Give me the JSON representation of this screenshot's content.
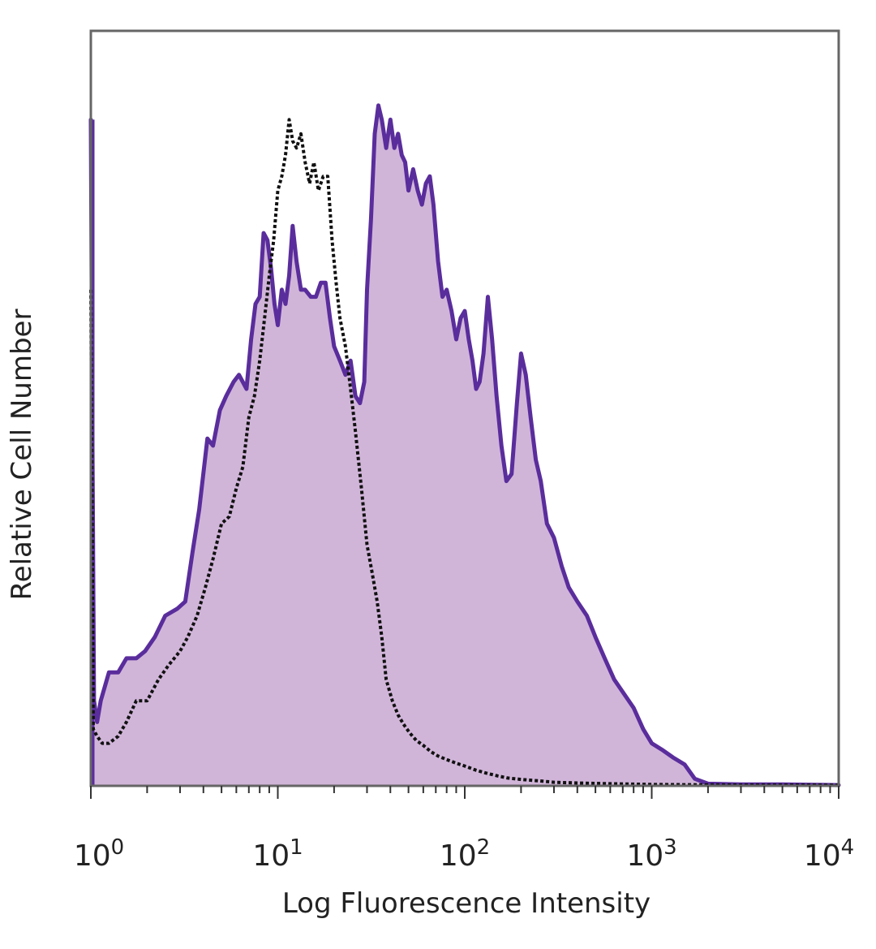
{
  "chart_data": {
    "type": "area",
    "xlabel": "Log Fluorescence Intensity",
    "ylabel": "Relative Cell Number",
    "x_scale": "log",
    "xlim": [
      1,
      10000
    ],
    "ylim": [
      0,
      1
    ],
    "grid": false,
    "legend": "none",
    "xticks": [
      {
        "value": 1,
        "base": "10",
        "exp": "0"
      },
      {
        "value": 10,
        "base": "10",
        "exp": "1"
      },
      {
        "value": 100,
        "base": "10",
        "exp": "2"
      },
      {
        "value": 1000,
        "base": "10",
        "exp": "3"
      },
      {
        "value": 10000,
        "base": "10",
        "exp": "4"
      }
    ],
    "series": [
      {
        "style": "filled-solid",
        "fill_color": "#d1b5d9",
        "line_color": "#5a2d9c",
        "points": [
          [
            1.0,
            0.94
          ],
          [
            1.02,
            0.48
          ],
          [
            1.04,
            0.12
          ],
          [
            1.08,
            0.09
          ],
          [
            1.13,
            0.12
          ],
          [
            1.25,
            0.16
          ],
          [
            1.4,
            0.16
          ],
          [
            1.55,
            0.18
          ],
          [
            1.75,
            0.18
          ],
          [
            1.95,
            0.19
          ],
          [
            2.2,
            0.21
          ],
          [
            2.5,
            0.24
          ],
          [
            2.9,
            0.25
          ],
          [
            3.2,
            0.26
          ],
          [
            3.5,
            0.33
          ],
          [
            3.8,
            0.39
          ],
          [
            4.2,
            0.49
          ],
          [
            4.5,
            0.48
          ],
          [
            4.9,
            0.53
          ],
          [
            5.3,
            0.55
          ],
          [
            5.8,
            0.57
          ],
          [
            6.2,
            0.58
          ],
          [
            6.8,
            0.56
          ],
          [
            7.2,
            0.63
          ],
          [
            7.6,
            0.68
          ],
          [
            8.0,
            0.69
          ],
          [
            8.4,
            0.78
          ],
          [
            8.8,
            0.77
          ],
          [
            9.2,
            0.73
          ],
          [
            9.6,
            0.68
          ],
          [
            10.0,
            0.65
          ],
          [
            10.5,
            0.7
          ],
          [
            11.0,
            0.68
          ],
          [
            11.5,
            0.72
          ],
          [
            12.0,
            0.79
          ],
          [
            12.6,
            0.74
          ],
          [
            13.3,
            0.7
          ],
          [
            14.0,
            0.7
          ],
          [
            15.0,
            0.69
          ],
          [
            16.0,
            0.69
          ],
          [
            17.0,
            0.71
          ],
          [
            18.0,
            0.71
          ],
          [
            19.0,
            0.66
          ],
          [
            20.0,
            0.62
          ],
          [
            21.5,
            0.6
          ],
          [
            23.0,
            0.58
          ],
          [
            24.5,
            0.6
          ],
          [
            26.0,
            0.55
          ],
          [
            27.5,
            0.54
          ],
          [
            29.0,
            0.57
          ],
          [
            30.0,
            0.7
          ],
          [
            31.5,
            0.8
          ],
          [
            33.0,
            0.92
          ],
          [
            34.5,
            0.96
          ],
          [
            36.0,
            0.94
          ],
          [
            38.0,
            0.9
          ],
          [
            40.0,
            0.94
          ],
          [
            42.0,
            0.9
          ],
          [
            44.0,
            0.92
          ],
          [
            46.0,
            0.89
          ],
          [
            48.0,
            0.88
          ],
          [
            50.0,
            0.84
          ],
          [
            53.0,
            0.87
          ],
          [
            56.0,
            0.84
          ],
          [
            59.0,
            0.82
          ],
          [
            62.0,
            0.85
          ],
          [
            65.0,
            0.86
          ],
          [
            68.0,
            0.82
          ],
          [
            72.0,
            0.74
          ],
          [
            76.0,
            0.69
          ],
          [
            80.0,
            0.7
          ],
          [
            85.0,
            0.67
          ],
          [
            90.0,
            0.63
          ],
          [
            95.0,
            0.66
          ],
          [
            100,
            0.67
          ],
          [
            105,
            0.63
          ],
          [
            110,
            0.6
          ],
          [
            115,
            0.56
          ],
          [
            120,
            0.57
          ],
          [
            126,
            0.61
          ],
          [
            133,
            0.69
          ],
          [
            140,
            0.63
          ],
          [
            148,
            0.55
          ],
          [
            157,
            0.48
          ],
          [
            167,
            0.43
          ],
          [
            178,
            0.44
          ],
          [
            190,
            0.54
          ],
          [
            200,
            0.61
          ],
          [
            212,
            0.58
          ],
          [
            225,
            0.52
          ],
          [
            240,
            0.46
          ],
          [
            255,
            0.43
          ],
          [
            275,
            0.37
          ],
          [
            300,
            0.35
          ],
          [
            330,
            0.31
          ],
          [
            360,
            0.28
          ],
          [
            400,
            0.26
          ],
          [
            450,
            0.24
          ],
          [
            500,
            0.21
          ],
          [
            560,
            0.18
          ],
          [
            630,
            0.15
          ],
          [
            710,
            0.13
          ],
          [
            800,
            0.11
          ],
          [
            900,
            0.08
          ],
          [
            1000,
            0.06
          ],
          [
            1150,
            0.05
          ],
          [
            1300,
            0.04
          ],
          [
            1500,
            0.03
          ],
          [
            1700,
            0.01
          ],
          [
            2000,
            0.003
          ],
          [
            3000,
            0.002
          ],
          [
            5000,
            0.002
          ],
          [
            10000,
            0.001
          ]
        ]
      },
      {
        "style": "dotted",
        "line_color": "#111111",
        "points": [
          [
            1.0,
            0.7
          ],
          [
            1.03,
            0.08
          ],
          [
            1.08,
            0.07
          ],
          [
            1.15,
            0.06
          ],
          [
            1.25,
            0.06
          ],
          [
            1.4,
            0.07
          ],
          [
            1.55,
            0.09
          ],
          [
            1.75,
            0.12
          ],
          [
            2.0,
            0.12
          ],
          [
            2.3,
            0.15
          ],
          [
            2.6,
            0.17
          ],
          [
            3.0,
            0.19
          ],
          [
            3.3,
            0.21
          ],
          [
            3.7,
            0.24
          ],
          [
            4.1,
            0.28
          ],
          [
            4.5,
            0.32
          ],
          [
            5.0,
            0.37
          ],
          [
            5.5,
            0.38
          ],
          [
            6.0,
            0.42
          ],
          [
            6.5,
            0.45
          ],
          [
            7.0,
            0.52
          ],
          [
            7.5,
            0.55
          ],
          [
            8.0,
            0.6
          ],
          [
            8.5,
            0.66
          ],
          [
            9.0,
            0.72
          ],
          [
            9.5,
            0.77
          ],
          [
            10.0,
            0.84
          ],
          [
            10.5,
            0.86
          ],
          [
            11.0,
            0.89
          ],
          [
            11.5,
            0.94
          ],
          [
            12.0,
            0.91
          ],
          [
            12.6,
            0.9
          ],
          [
            13.3,
            0.92
          ],
          [
            14.0,
            0.88
          ],
          [
            14.8,
            0.85
          ],
          [
            15.6,
            0.88
          ],
          [
            16.5,
            0.84
          ],
          [
            17.5,
            0.86
          ],
          [
            18.5,
            0.86
          ],
          [
            19.5,
            0.77
          ],
          [
            20.5,
            0.71
          ],
          [
            21.5,
            0.66
          ],
          [
            23.0,
            0.62
          ],
          [
            24.5,
            0.56
          ],
          [
            26.0,
            0.5
          ],
          [
            28.0,
            0.42
          ],
          [
            30.0,
            0.34
          ],
          [
            32.0,
            0.3
          ],
          [
            34.0,
            0.26
          ],
          [
            36.0,
            0.21
          ],
          [
            38.0,
            0.15
          ],
          [
            41.0,
            0.12
          ],
          [
            44.0,
            0.1
          ],
          [
            47.0,
            0.087
          ],
          [
            51.0,
            0.074
          ],
          [
            55.0,
            0.064
          ],
          [
            60.0,
            0.057
          ],
          [
            66.0,
            0.048
          ],
          [
            72.0,
            0.042
          ],
          [
            80.0,
            0.037
          ],
          [
            90.0,
            0.032
          ],
          [
            100,
            0.028
          ],
          [
            115,
            0.022
          ],
          [
            130,
            0.018
          ],
          [
            150,
            0.014
          ],
          [
            170,
            0.011
          ],
          [
            200,
            0.009
          ],
          [
            250,
            0.007
          ],
          [
            300,
            0.005
          ],
          [
            400,
            0.004
          ],
          [
            600,
            0.003
          ],
          [
            1000,
            0.002
          ],
          [
            3000,
            0.001
          ],
          [
            10000,
            0.001
          ]
        ]
      }
    ]
  }
}
